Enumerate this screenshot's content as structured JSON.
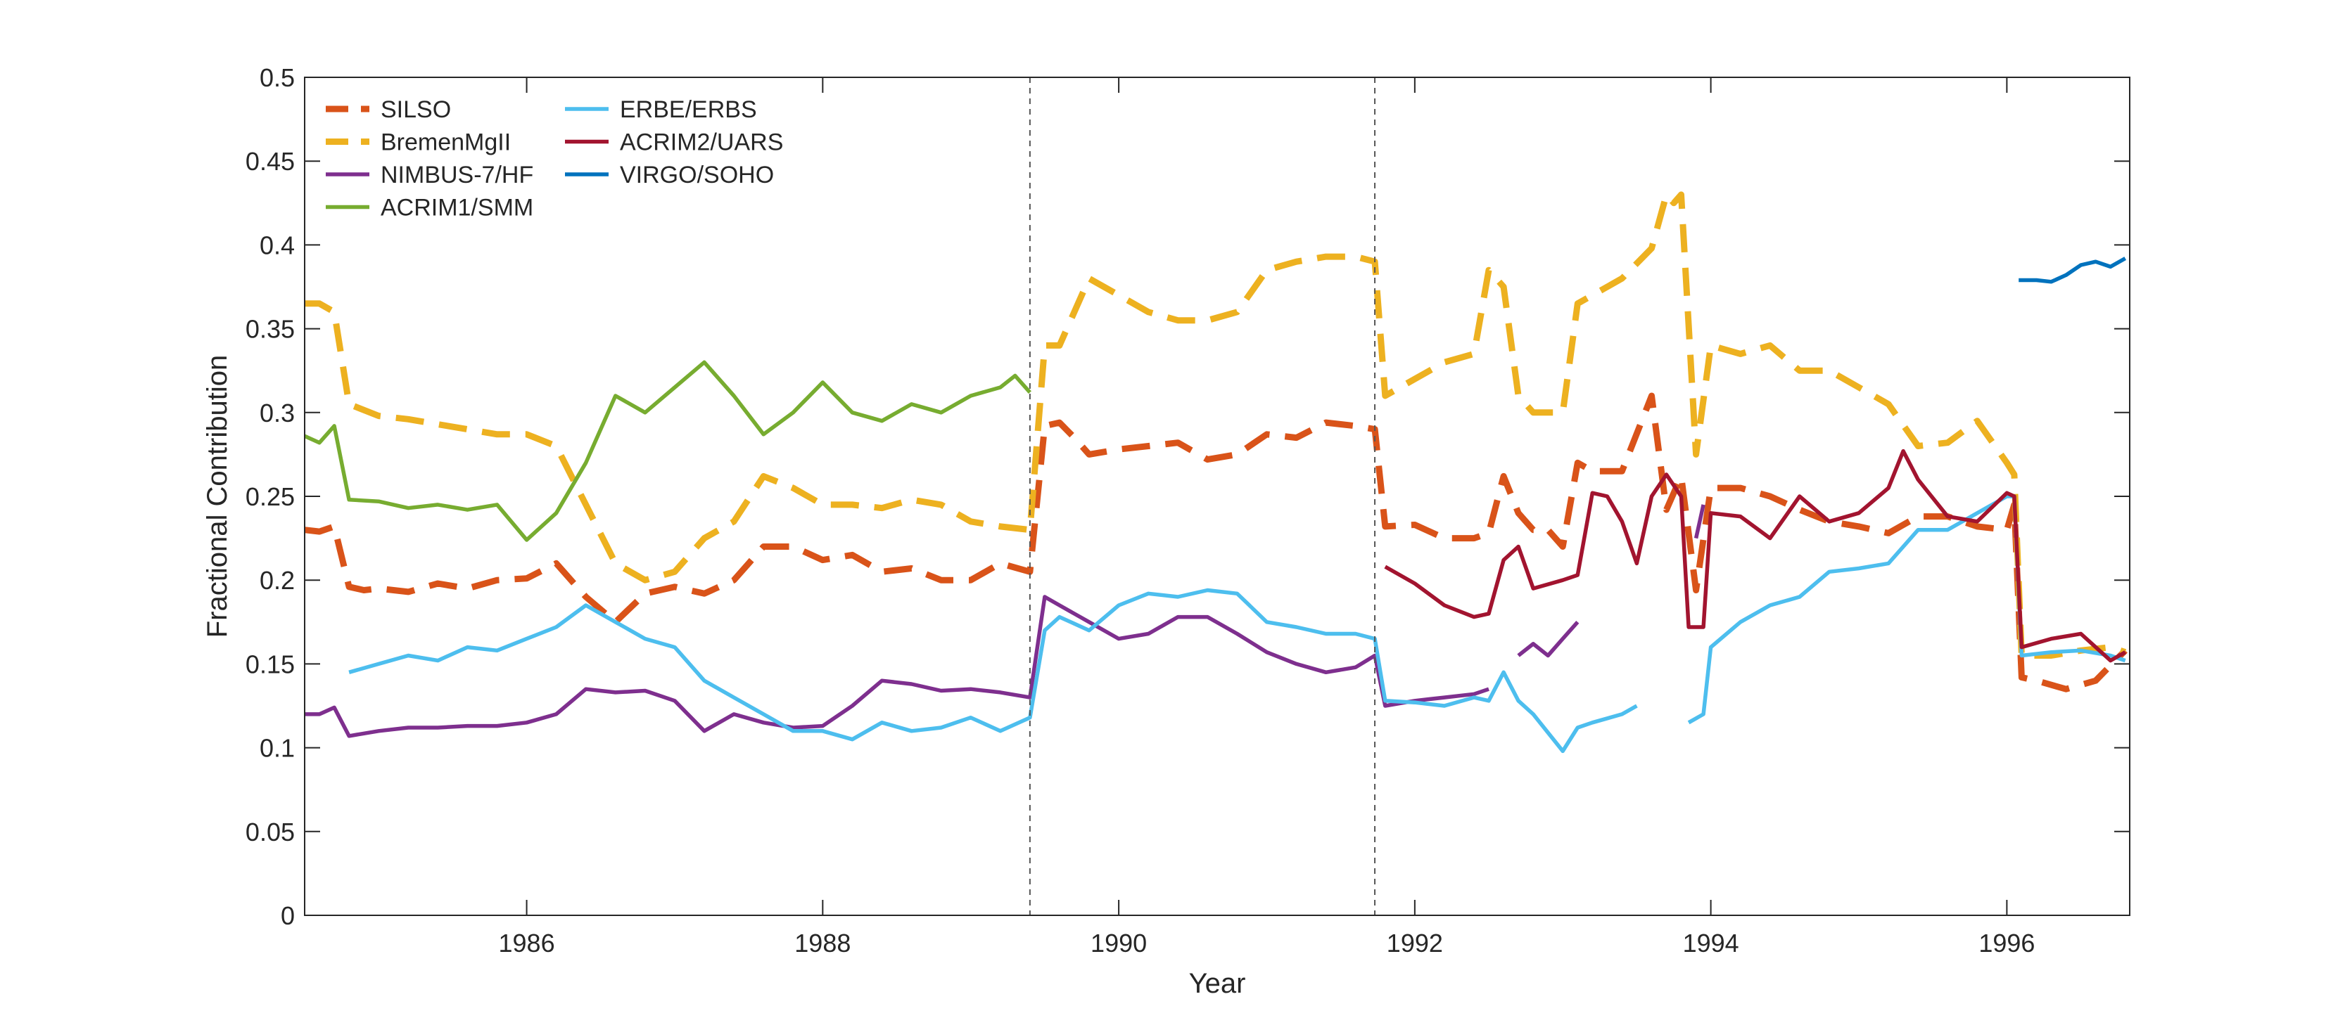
{
  "chart_data": {
    "type": "line",
    "xlabel": "Year",
    "ylabel": "Fractional Contribution",
    "xlim": [
      1984.5,
      1996.83
    ],
    "ylim": [
      0,
      0.5
    ],
    "xticks": [
      1986,
      1988,
      1990,
      1992,
      1994,
      1996
    ],
    "xtick_labels": [
      "1986",
      "1988",
      "1990",
      "1992",
      "1994",
      "1996"
    ],
    "yticks": [
      0,
      0.05,
      0.1,
      0.15,
      0.2,
      0.25,
      0.3,
      0.35,
      0.4,
      0.45,
      0.5
    ],
    "ytick_labels": [
      "0",
      "0.05",
      "0.1",
      "0.15",
      "0.2",
      "0.25",
      "0.3",
      "0.35",
      "0.4",
      "0.45",
      "0.5"
    ],
    "grid": false,
    "legend_position": "top-left",
    "vertical_markers": [
      1989.4,
      1991.73
    ],
    "series": [
      {
        "name": "SILSO",
        "color": "#D95319",
        "style": "dashed",
        "x": [
          1984.5,
          1984.6,
          1984.7,
          1984.8,
          1984.9,
          1985.0,
          1985.2,
          1985.4,
          1985.6,
          1985.8,
          1986.0,
          1986.2,
          1986.4,
          1986.6,
          1986.8,
          1987.0,
          1987.2,
          1987.4,
          1987.6,
          1987.8,
          1988.0,
          1988.2,
          1988.4,
          1988.6,
          1988.8,
          1989.0,
          1989.2,
          1989.4,
          1989.5,
          1989.6,
          1989.7,
          1989.8,
          1990.0,
          1990.2,
          1990.4,
          1990.6,
          1990.8,
          1991.0,
          1991.2,
          1991.4,
          1991.6,
          1991.73,
          1991.8,
          1992.0,
          1992.2,
          1992.4,
          1992.5,
          1992.6,
          1992.7,
          1992.8,
          1992.9,
          1993.0,
          1993.1,
          1993.2,
          1993.4,
          1993.6,
          1993.7,
          1993.8,
          1993.9,
          1994.0,
          1994.2,
          1994.4,
          1994.6,
          1994.8,
          1995.0,
          1995.2,
          1995.4,
          1995.6,
          1995.8,
          1996.0,
          1996.05,
          1996.1,
          1996.2,
          1996.4,
          1996.6,
          1996.8
        ],
        "y": [
          0.23,
          0.229,
          0.232,
          0.196,
          0.194,
          0.195,
          0.193,
          0.198,
          0.195,
          0.2,
          0.201,
          0.21,
          0.19,
          0.175,
          0.192,
          0.196,
          0.192,
          0.2,
          0.22,
          0.22,
          0.212,
          0.215,
          0.205,
          0.207,
          0.2,
          0.2,
          0.21,
          0.205,
          0.292,
          0.294,
          0.285,
          0.275,
          0.278,
          0.28,
          0.282,
          0.272,
          0.275,
          0.287,
          0.285,
          0.294,
          0.292,
          0.29,
          0.232,
          0.233,
          0.225,
          0.225,
          0.228,
          0.262,
          0.24,
          0.23,
          0.23,
          0.22,
          0.27,
          0.265,
          0.265,
          0.31,
          0.242,
          0.262,
          0.194,
          0.255,
          0.255,
          0.25,
          0.242,
          0.235,
          0.232,
          0.228,
          0.238,
          0.238,
          0.232,
          0.23,
          0.245,
          0.142,
          0.14,
          0.135,
          0.14,
          0.158
        ]
      },
      {
        "name": "BremenMgII",
        "color": "#EDB120",
        "style": "dashed",
        "x": [
          1984.5,
          1984.6,
          1984.7,
          1984.8,
          1985.0,
          1985.2,
          1985.4,
          1985.6,
          1985.8,
          1986.0,
          1986.2,
          1986.4,
          1986.6,
          1986.8,
          1987.0,
          1987.2,
          1987.4,
          1987.6,
          1987.8,
          1988.0,
          1988.2,
          1988.4,
          1988.6,
          1988.8,
          1989.0,
          1989.2,
          1989.4,
          1989.5,
          1989.6,
          1989.8,
          1990.0,
          1990.2,
          1990.4,
          1990.6,
          1990.8,
          1991.0,
          1991.2,
          1991.4,
          1991.6,
          1991.73,
          1991.8,
          1992.0,
          1992.2,
          1992.4,
          1992.5,
          1992.6,
          1992.7,
          1992.8,
          1993.0,
          1993.1,
          1993.2,
          1993.4,
          1993.6,
          1993.7,
          1993.75,
          1993.8,
          1993.9,
          1994.0,
          1994.2,
          1994.4,
          1994.6,
          1994.8,
          1995.0,
          1995.2,
          1995.4,
          1995.6,
          1995.8,
          1996.0,
          1996.05,
          1996.1,
          1996.3,
          1996.5,
          1996.7,
          1996.8
        ],
        "y": [
          0.365,
          0.365,
          0.36,
          0.305,
          0.298,
          0.296,
          0.293,
          0.29,
          0.287,
          0.287,
          0.28,
          0.245,
          0.21,
          0.2,
          0.205,
          0.225,
          0.235,
          0.262,
          0.255,
          0.245,
          0.245,
          0.243,
          0.248,
          0.245,
          0.235,
          0.232,
          0.23,
          0.34,
          0.34,
          0.38,
          0.37,
          0.36,
          0.355,
          0.355,
          0.36,
          0.385,
          0.39,
          0.393,
          0.393,
          0.39,
          0.31,
          0.32,
          0.33,
          0.335,
          0.385,
          0.375,
          0.31,
          0.3,
          0.3,
          0.365,
          0.37,
          0.38,
          0.398,
          0.43,
          0.425,
          0.43,
          0.275,
          0.34,
          0.335,
          0.34,
          0.325,
          0.325,
          0.315,
          0.305,
          0.28,
          0.282,
          0.295,
          0.27,
          0.263,
          0.155,
          0.155,
          0.158,
          0.16,
          0.157
        ]
      },
      {
        "name": "NIMBUS-7/HF",
        "color": "#7E2F8E",
        "style": "solid",
        "x": [
          1984.5,
          1984.6,
          1984.7,
          1984.8,
          1985.0,
          1985.2,
          1985.4,
          1985.6,
          1985.8,
          1986.0,
          1986.2,
          1986.4,
          1986.6,
          1986.8,
          1987.0,
          1987.2,
          1987.4,
          1987.6,
          1987.8,
          1988.0,
          1988.2,
          1988.4,
          1988.6,
          1988.8,
          1989.0,
          1989.2,
          1989.4,
          1989.5,
          1989.6,
          1989.8,
          1990.0,
          1990.2,
          1990.4,
          1990.6,
          1990.8,
          1991.0,
          1991.2,
          1991.4,
          1991.6,
          1991.73,
          1991.8,
          1992.0,
          1992.2,
          1992.4,
          1992.5,
          null,
          1992.7,
          1992.8,
          1992.9,
          1993.0,
          1993.1,
          null,
          1993.9,
          1993.95
        ],
        "y": [
          0.12,
          0.12,
          0.124,
          0.107,
          0.11,
          0.112,
          0.112,
          0.113,
          0.113,
          0.115,
          0.12,
          0.135,
          0.133,
          0.134,
          0.128,
          0.11,
          0.12,
          0.115,
          0.112,
          0.113,
          0.125,
          0.14,
          0.138,
          0.134,
          0.135,
          0.133,
          0.13,
          0.19,
          0.185,
          0.175,
          0.165,
          0.168,
          0.178,
          0.178,
          0.168,
          0.157,
          0.15,
          0.145,
          0.148,
          0.155,
          0.125,
          0.128,
          0.13,
          0.132,
          0.135,
          null,
          0.155,
          0.162,
          0.155,
          0.165,
          0.175,
          null,
          0.225,
          0.245
        ]
      },
      {
        "name": "ACRIM1/SMM",
        "color": "#77AC30",
        "style": "solid",
        "x": [
          1984.5,
          1984.6,
          1984.7,
          1984.8,
          1985.0,
          1985.2,
          1985.4,
          1985.6,
          1985.8,
          1986.0,
          1986.2,
          1986.4,
          1986.6,
          1986.8,
          1987.0,
          1987.2,
          1987.4,
          1987.6,
          1987.8,
          1988.0,
          1988.2,
          1988.4,
          1988.6,
          1988.8,
          1989.0,
          1989.2,
          1989.3,
          1989.4
        ],
        "y": [
          0.286,
          0.282,
          0.292,
          0.248,
          0.247,
          0.243,
          0.245,
          0.242,
          0.245,
          0.224,
          0.24,
          0.27,
          0.31,
          0.3,
          0.315,
          0.33,
          0.31,
          0.287,
          0.3,
          0.318,
          0.3,
          0.295,
          0.305,
          0.3,
          0.31,
          0.315,
          0.322,
          0.312
        ]
      },
      {
        "name": "ERBE/ERBS",
        "color": "#4DBEEE",
        "style": "solid",
        "x": [
          1984.8,
          1985.0,
          1985.2,
          1985.4,
          1985.6,
          1985.8,
          1986.0,
          1986.2,
          1986.4,
          1986.6,
          1986.8,
          1987.0,
          1987.2,
          1987.4,
          1987.6,
          1987.8,
          1988.0,
          1988.2,
          1988.4,
          1988.6,
          1988.8,
          1989.0,
          1989.2,
          1989.4,
          1989.5,
          1989.6,
          1989.8,
          1990.0,
          1990.2,
          1990.4,
          1990.6,
          1990.8,
          1991.0,
          1991.2,
          1991.4,
          1991.6,
          1991.73,
          1991.8,
          1992.0,
          1992.2,
          1992.4,
          1992.5,
          1992.6,
          1992.7,
          1992.8,
          1993.0,
          1993.1,
          1993.2,
          1993.4,
          1993.5,
          null,
          1993.85,
          1993.95,
          1994.0,
          1994.2,
          1994.4,
          1994.6,
          1994.8,
          1995.0,
          1995.2,
          1995.4,
          1995.6,
          1995.8,
          1996.0,
          1996.05,
          1996.1,
          1996.3,
          1996.5,
          1996.7,
          1996.8
        ],
        "y": [
          0.145,
          0.15,
          0.155,
          0.152,
          0.16,
          0.158,
          0.165,
          0.172,
          0.185,
          0.175,
          0.165,
          0.16,
          0.14,
          0.13,
          0.12,
          0.11,
          0.11,
          0.105,
          0.115,
          0.11,
          0.112,
          0.118,
          0.11,
          0.118,
          0.17,
          0.178,
          0.17,
          0.185,
          0.192,
          0.19,
          0.194,
          0.192,
          0.175,
          0.172,
          0.168,
          0.168,
          0.165,
          0.128,
          0.127,
          0.125,
          0.13,
          0.128,
          0.145,
          0.128,
          0.12,
          0.098,
          0.112,
          0.115,
          0.12,
          0.125,
          null,
          0.115,
          0.12,
          0.16,
          0.175,
          0.185,
          0.19,
          0.205,
          0.207,
          0.21,
          0.23,
          0.23,
          0.24,
          0.25,
          0.25,
          0.155,
          0.157,
          0.158,
          0.155,
          0.152
        ]
      },
      {
        "name": "ACRIM2/UARS",
        "color": "#A2142F",
        "style": "solid",
        "x": [
          1991.8,
          1992.0,
          1992.2,
          1992.4,
          1992.5,
          1992.6,
          1992.7,
          1992.8,
          1993.0,
          1993.1,
          1993.2,
          1993.3,
          1993.4,
          1993.5,
          1993.6,
          1993.7,
          1993.8,
          1993.85,
          1993.95,
          1994.0,
          1994.2,
          1994.4,
          1994.6,
          1994.8,
          1995.0,
          1995.2,
          1995.3,
          1995.4,
          1995.6,
          1995.8,
          1996.0,
          1996.05,
          1996.1,
          1996.3,
          1996.5,
          1996.7,
          1996.8
        ],
        "y": [
          0.208,
          0.198,
          0.185,
          0.178,
          0.18,
          0.212,
          0.22,
          0.195,
          0.2,
          0.203,
          0.252,
          0.25,
          0.235,
          0.21,
          0.25,
          0.263,
          0.25,
          0.172,
          0.172,
          0.24,
          0.238,
          0.225,
          0.25,
          0.235,
          0.24,
          0.255,
          0.277,
          0.26,
          0.238,
          0.235,
          0.252,
          0.25,
          0.16,
          0.165,
          0.168,
          0.152,
          0.157
        ]
      },
      {
        "name": "VIRGO/SOHO",
        "color": "#0072BD",
        "style": "solid",
        "x": [
          1996.08,
          1996.2,
          1996.3,
          1996.4,
          1996.5,
          1996.6,
          1996.7,
          1996.8
        ],
        "y": [
          0.379,
          0.379,
          0.378,
          0.382,
          0.388,
          0.39,
          0.387,
          0.392
        ]
      }
    ]
  }
}
